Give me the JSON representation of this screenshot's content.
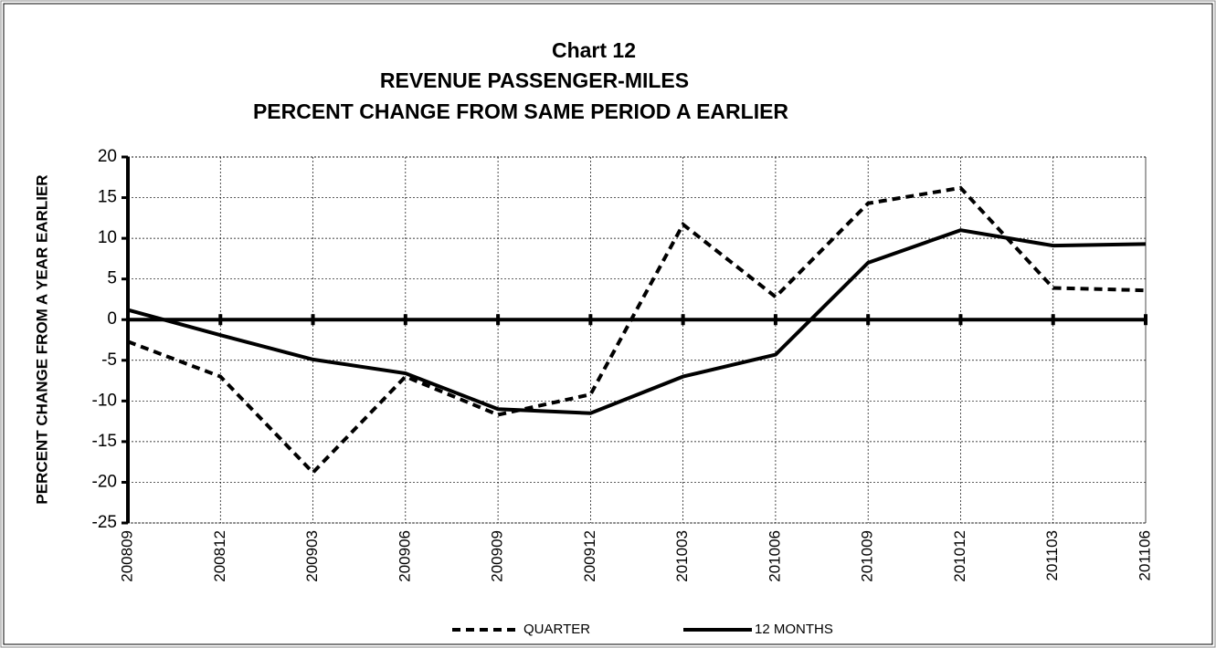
{
  "chart_data": {
    "type": "line",
    "title": [
      "Chart 12",
      "REVENUE PASSENGER-MILES",
      "PERCENT CHANGE FROM SAME PERIOD A EARLIER"
    ],
    "y_label": "PERCENT CHANGE FROM A YEAR EARLIER",
    "categories": [
      "200809",
      "200812",
      "200903",
      "200906",
      "200909",
      "200912",
      "201003",
      "201006",
      "201009",
      "201012",
      "201103",
      "201106"
    ],
    "series": [
      {
        "name": "QUARTER",
        "color": "#000000",
        "line_style": "dashed",
        "values": [
          -2.7,
          -7,
          -18.8,
          -7,
          -11.7,
          -9.2,
          11.7,
          2.8,
          14.3,
          16.2,
          3.9,
          3.6
        ]
      },
      {
        "name": "12 MONTHS",
        "color": "#000000",
        "line_style": "solid",
        "values": [
          1.2,
          -1.9,
          -4.9,
          -6.6,
          -11,
          -11.5,
          -7,
          -4.3,
          7,
          11,
          9.1,
          9.3
        ]
      }
    ],
    "ylim": [
      -25,
      20
    ],
    "yticks": [
      -25,
      -20,
      -15,
      -10,
      -5,
      0,
      5,
      10,
      15,
      20
    ],
    "grid": true,
    "legend": "bottom"
  }
}
